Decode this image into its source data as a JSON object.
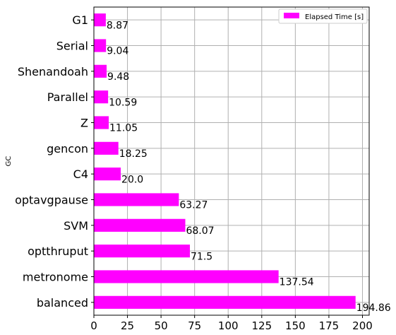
{
  "chart_data": {
    "type": "bar",
    "orientation": "horizontal",
    "categories": [
      "G1",
      "Serial",
      "Shenandoah",
      "Parallel",
      "Z",
      "gencon",
      "C4",
      "optavgpause",
      "SVM",
      "optthruput",
      "metronome",
      "balanced"
    ],
    "series": [
      {
        "name": "Elapsed Time [s]",
        "values": [
          8.87,
          9.04,
          9.48,
          10.59,
          11.05,
          18.25,
          20.0,
          63.27,
          68.07,
          71.5,
          137.54,
          194.86
        ],
        "value_labels": [
          "8.87",
          "9.04",
          "9.48",
          "10.59",
          "11.05",
          "18.25",
          "20.0",
          "63.27",
          "68.07",
          "71.5",
          "137.54",
          "194.86"
        ],
        "color": "#ff00ff"
      }
    ],
    "ylabel": "GC",
    "xlim": [
      0,
      205
    ],
    "xticks": [
      0,
      25,
      50,
      75,
      100,
      125,
      150,
      175,
      200
    ],
    "xtick_labels": [
      "0",
      "25",
      "50",
      "75",
      "100",
      "125",
      "150",
      "175",
      "200"
    ],
    "grid": true,
    "legend": {
      "placement": "top-right"
    }
  }
}
